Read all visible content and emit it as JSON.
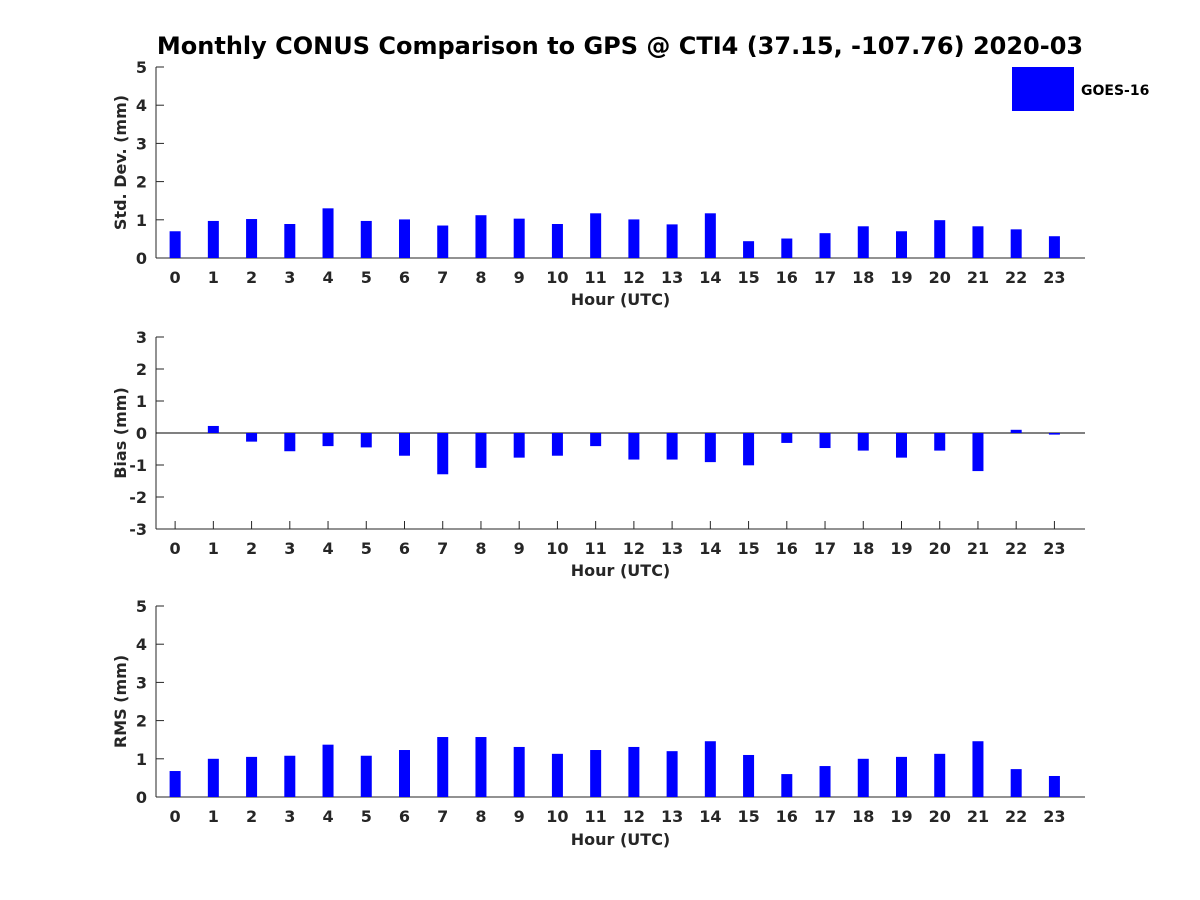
{
  "figure": {
    "title": "Monthly CONUS Comparison to GPS @ CTI4 (37.15, -107.76) 2020-03",
    "legend_label": "GOES-16",
    "bar_color": "#0000ff",
    "axis_color": "#262626"
  },
  "chart_data": [
    {
      "type": "bar",
      "title": "Monthly CONUS Comparison to GPS @ CTI4 (37.15, -107.76) 2020-03",
      "xlabel": "Hour (UTC)",
      "ylabel": "Std. Dev. (mm)",
      "ylim": [
        0,
        5
      ],
      "yticks": [
        "0",
        "1",
        "2",
        "3",
        "4",
        "5"
      ],
      "categories": [
        "0",
        "1",
        "2",
        "3",
        "4",
        "5",
        "6",
        "7",
        "8",
        "9",
        "10",
        "11",
        "12",
        "13",
        "14",
        "15",
        "16",
        "17",
        "18",
        "19",
        "20",
        "21",
        "22",
        "23"
      ],
      "series": [
        {
          "name": "GOES-16",
          "values": [
            0.7,
            0.97,
            1.02,
            0.89,
            1.3,
            0.97,
            1.01,
            0.85,
            1.12,
            1.03,
            0.89,
            1.17,
            1.01,
            0.88,
            1.17,
            0.44,
            0.51,
            0.65,
            0.83,
            0.7,
            0.99,
            0.83,
            0.75,
            0.57
          ]
        }
      ]
    },
    {
      "type": "bar",
      "xlabel": "Hour (UTC)",
      "ylabel": "Bias (mm)",
      "ylim": [
        -3,
        3
      ],
      "yticks": [
        "-3",
        "-2",
        "-1",
        "0",
        "1",
        "2",
        "3"
      ],
      "categories": [
        "0",
        "1",
        "2",
        "3",
        "4",
        "5",
        "6",
        "7",
        "8",
        "9",
        "10",
        "11",
        "12",
        "13",
        "14",
        "15",
        "16",
        "17",
        "18",
        "19",
        "20",
        "21",
        "22",
        "23"
      ],
      "series": [
        {
          "name": "GOES-16",
          "values": [
            0.0,
            0.22,
            -0.27,
            -0.57,
            -0.41,
            -0.45,
            -0.71,
            -1.29,
            -1.09,
            -0.77,
            -0.71,
            -0.41,
            -0.83,
            -0.83,
            -0.91,
            -1.01,
            -0.31,
            -0.47,
            -0.55,
            -0.77,
            -0.55,
            -1.19,
            0.1,
            -0.05
          ]
        }
      ]
    },
    {
      "type": "bar",
      "xlabel": "Hour (UTC)",
      "ylabel": "RMS (mm)",
      "ylim": [
        0,
        5
      ],
      "yticks": [
        "0",
        "1",
        "2",
        "3",
        "4",
        "5"
      ],
      "categories": [
        "0",
        "1",
        "2",
        "3",
        "4",
        "5",
        "6",
        "7",
        "8",
        "9",
        "10",
        "11",
        "12",
        "13",
        "14",
        "15",
        "16",
        "17",
        "18",
        "19",
        "20",
        "21",
        "22",
        "23"
      ],
      "series": [
        {
          "name": "GOES-16",
          "values": [
            0.68,
            1.0,
            1.05,
            1.08,
            1.37,
            1.08,
            1.23,
            1.57,
            1.57,
            1.31,
            1.13,
            1.23,
            1.31,
            1.2,
            1.46,
            1.1,
            0.6,
            0.81,
            1.0,
            1.05,
            1.13,
            1.46,
            0.73,
            0.55
          ]
        }
      ]
    }
  ]
}
